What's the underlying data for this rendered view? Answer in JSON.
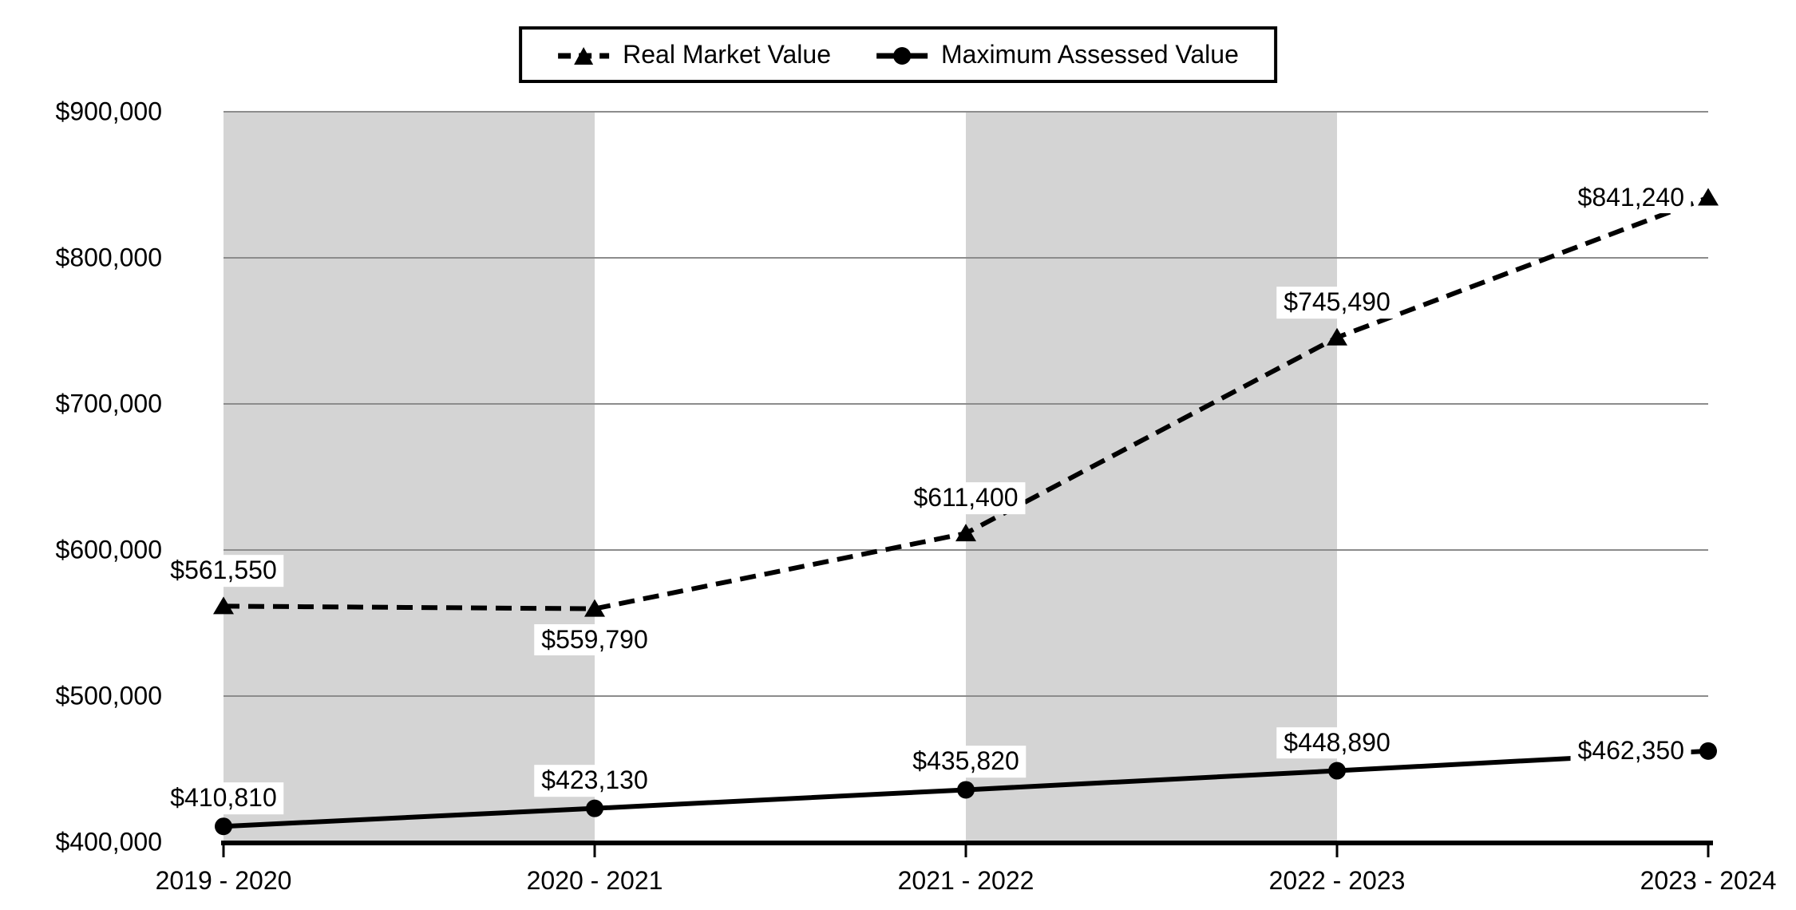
{
  "chart_data": {
    "type": "line",
    "title": "",
    "categories": [
      "2019 - 2020",
      "2020 - 2021",
      "2021 - 2022",
      "2022 - 2023",
      "2023 - 2024"
    ],
    "series": [
      {
        "name": "Real Market Value",
        "values": [
          561550,
          559790,
          611400,
          745490,
          841240
        ],
        "labels": [
          "$561,550",
          "$559,790",
          "$611,400",
          "$745,490",
          "$841,240"
        ],
        "label_positions": [
          "above",
          "below",
          "above",
          "above",
          "left"
        ],
        "marker": "triangle",
        "line_style": "dashed",
        "color": "#000000"
      },
      {
        "name": "Maximum Assessed Value",
        "values": [
          410810,
          423130,
          435820,
          448890,
          462350
        ],
        "labels": [
          "$410,810",
          "$423,130",
          "$435,820",
          "$448,890",
          "$462,350"
        ],
        "label_positions": [
          "above",
          "above",
          "above",
          "above",
          "left"
        ],
        "marker": "circle",
        "line_style": "solid",
        "color": "#000000"
      }
    ],
    "y_axis": {
      "min": 400000,
      "max": 900000,
      "tick_step": 100000,
      "tick_labels": [
        "$400,000",
        "$500,000",
        "$600,000",
        "$700,000",
        "$800,000",
        "$900,000"
      ]
    },
    "x_axis": {
      "tick_labels": [
        "2019 - 2020",
        "2020 - 2021",
        "2021 - 2022",
        "2022 - 2023",
        "2023 - 2024"
      ]
    },
    "shaded_bands": [
      [
        0,
        1
      ],
      [
        2,
        3
      ]
    ],
    "legend_position": "top",
    "grid": "horizontal",
    "colors": {
      "band": "#d4d4d4",
      "gridline": "#8c8c8c",
      "axis": "#000000",
      "series": "#000000",
      "background": "#ffffff",
      "label_background": "#ffffff"
    }
  }
}
